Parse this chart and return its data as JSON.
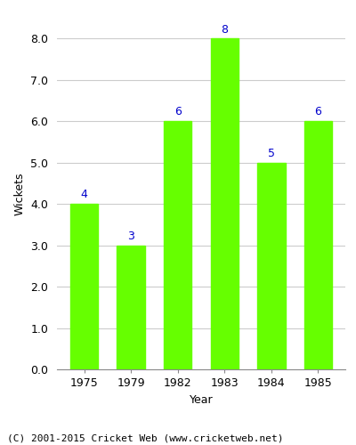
{
  "years": [
    "1975",
    "1979",
    "1982",
    "1983",
    "1984",
    "1985"
  ],
  "values": [
    4,
    3,
    6,
    8,
    5,
    6
  ],
  "bar_color": "#66ff00",
  "bar_edge_color": "#66ff00",
  "label_color": "#0000cc",
  "xlabel": "Year",
  "ylabel": "Wickets",
  "ylim": [
    0,
    8.5
  ],
  "yticks": [
    0.0,
    1.0,
    2.0,
    3.0,
    4.0,
    5.0,
    6.0,
    7.0,
    8.0
  ],
  "footer": "(C) 2001-2015 Cricket Web (www.cricketweb.net)",
  "label_fontsize": 9,
  "axis_fontsize": 9,
  "tick_fontsize": 9,
  "footer_fontsize": 8,
  "bar_width": 0.6
}
